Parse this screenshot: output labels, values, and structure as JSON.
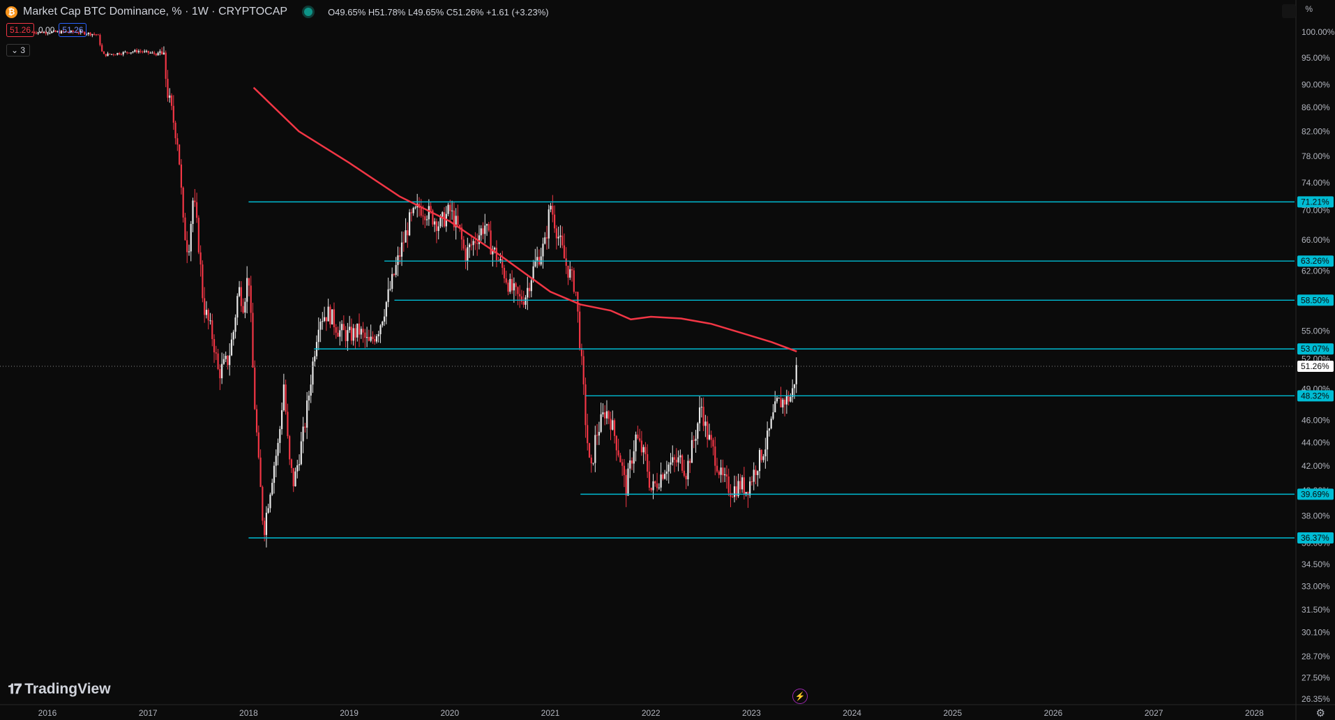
{
  "header": {
    "symbol_icon": "bitcoin-icon",
    "title": "Market Cap BTC Dominance, % · 1W · CRYPTOCAP",
    "ohlc": "O49.65% H51.78% L49.65% C51.26% +1.61 (+3.23%)",
    "price_left": "51.26",
    "price_mid": "0.00",
    "price_right": "51.26",
    "indicators_toggle": "⌄ 3"
  },
  "brand": {
    "logo_text": "TradingView"
  },
  "axis": {
    "unit": "%",
    "settings_icon": "gear-icon"
  },
  "colors": {
    "background": "#0b0b0b",
    "level_line": "#00bcd4",
    "ma_line": "#f23645",
    "candle_up": "#e8e8e8",
    "candle_down": "#f23645"
  },
  "chart_data": {
    "type": "candlestick",
    "title": "Market Cap BTC Dominance, % · 1W · CRYPTOCAP",
    "x_ticks": [
      "2016",
      "2017",
      "2018",
      "2019",
      "2020",
      "2021",
      "2022",
      "2023",
      "2024",
      "2025",
      "2026",
      "2027",
      "2028"
    ],
    "y_ticks": [
      "100.00%",
      "95.00%",
      "90.00%",
      "86.00%",
      "82.00%",
      "78.00%",
      "74.00%",
      "70.00%",
      "66.00%",
      "62.00%",
      "55.00%",
      "52.00%",
      "49.00%",
      "46.00%",
      "44.00%",
      "42.00%",
      "40.00%",
      "38.00%",
      "36.00%",
      "34.50%",
      "33.00%",
      "31.50%",
      "30.10%",
      "28.70%",
      "27.50%",
      "26.35%"
    ],
    "y_scale": "log",
    "ylim": [
      26.0,
      101.5
    ],
    "grid": false,
    "current_price": 51.26,
    "current_price_label": "51.26%",
    "horizontal_levels": [
      {
        "value": 71.21,
        "label": "71.21%",
        "start": 2018.0
      },
      {
        "value": 63.26,
        "label": "63.26%",
        "start": 2019.35
      },
      {
        "value": 58.5,
        "label": "58.50%",
        "start": 2019.45
      },
      {
        "value": 53.07,
        "label": "53.07%",
        "start": 2018.65
      },
      {
        "value": 48.32,
        "label": "48.32%",
        "start": 2021.35
      },
      {
        "value": 39.69,
        "label": "39.69%",
        "start": 2021.3
      },
      {
        "value": 36.37,
        "label": "36.37%",
        "start": 2018.0
      }
    ],
    "moving_average": [
      [
        2018.05,
        89.5
      ],
      [
        2018.5,
        82.0
      ],
      [
        2019.0,
        77.0
      ],
      [
        2019.5,
        72.0
      ],
      [
        2020.0,
        68.5
      ],
      [
        2020.5,
        64.0
      ],
      [
        2021.0,
        59.5
      ],
      [
        2021.3,
        58.0
      ],
      [
        2021.6,
        57.3
      ],
      [
        2021.8,
        56.3
      ],
      [
        2022.0,
        56.6
      ],
      [
        2022.3,
        56.4
      ],
      [
        2022.6,
        55.8
      ],
      [
        2022.9,
        54.8
      ],
      [
        2023.2,
        53.8
      ],
      [
        2023.45,
        52.8
      ]
    ],
    "price_path": [
      [
        2015.85,
        100.0
      ],
      [
        2016.3,
        100.0
      ],
      [
        2016.5,
        99.5
      ],
      [
        2016.55,
        95.5
      ],
      [
        2016.9,
        96.3
      ],
      [
        2017.15,
        95.5
      ],
      [
        2017.2,
        88.0
      ],
      [
        2017.3,
        80.0
      ],
      [
        2017.35,
        68.0
      ],
      [
        2017.4,
        64.5
      ],
      [
        2017.45,
        72.0
      ],
      [
        2017.5,
        66.0
      ],
      [
        2017.55,
        58.0
      ],
      [
        2017.65,
        54.0
      ],
      [
        2017.7,
        50.5
      ],
      [
        2017.8,
        52.0
      ],
      [
        2017.85,
        55.0
      ],
      [
        2017.9,
        60.0
      ],
      [
        2017.95,
        58.0
      ],
      [
        2018.0,
        62.0
      ],
      [
        2018.05,
        49.0
      ],
      [
        2018.1,
        42.0
      ],
      [
        2018.15,
        36.8
      ],
      [
        2018.25,
        42.0
      ],
      [
        2018.3,
        44.0
      ],
      [
        2018.35,
        49.5
      ],
      [
        2018.4,
        42.5
      ],
      [
        2018.45,
        40.5
      ],
      [
        2018.55,
        45.0
      ],
      [
        2018.6,
        48.5
      ],
      [
        2018.7,
        56.5
      ],
      [
        2018.8,
        57.0
      ],
      [
        2018.9,
        55.0
      ],
      [
        2019.0,
        54.5
      ],
      [
        2019.1,
        55.0
      ],
      [
        2019.2,
        53.5
      ],
      [
        2019.3,
        55.5
      ],
      [
        2019.4,
        59.5
      ],
      [
        2019.5,
        64.0
      ],
      [
        2019.6,
        68.5
      ],
      [
        2019.7,
        70.5
      ],
      [
        2019.8,
        69.5
      ],
      [
        2019.9,
        68.0
      ],
      [
        2020.0,
        70.0
      ],
      [
        2020.1,
        67.0
      ],
      [
        2020.15,
        64.0
      ],
      [
        2020.25,
        66.0
      ],
      [
        2020.35,
        68.0
      ],
      [
        2020.4,
        65.5
      ],
      [
        2020.5,
        63.0
      ],
      [
        2020.6,
        60.0
      ],
      [
        2020.7,
        58.5
      ],
      [
        2020.75,
        59.0
      ],
      [
        2020.85,
        63.0
      ],
      [
        2020.95,
        65.5
      ],
      [
        2021.0,
        71.0
      ],
      [
        2021.05,
        68.0
      ],
      [
        2021.15,
        63.0
      ],
      [
        2021.25,
        60.0
      ],
      [
        2021.3,
        53.0
      ],
      [
        2021.35,
        46.0
      ],
      [
        2021.4,
        41.0
      ],
      [
        2021.45,
        44.5
      ],
      [
        2021.55,
        47.0
      ],
      [
        2021.6,
        46.0
      ],
      [
        2021.7,
        42.5
      ],
      [
        2021.75,
        40.0
      ],
      [
        2021.85,
        44.5
      ],
      [
        2021.95,
        42.5
      ],
      [
        2022.0,
        40.0
      ],
      [
        2022.05,
        40.5
      ],
      [
        2022.15,
        42.0
      ],
      [
        2022.3,
        42.5
      ],
      [
        2022.35,
        41.5
      ],
      [
        2022.45,
        45.0
      ],
      [
        2022.5,
        47.5
      ],
      [
        2022.55,
        45.0
      ],
      [
        2022.65,
        42.5
      ],
      [
        2022.7,
        41.0
      ],
      [
        2022.8,
        40.0
      ],
      [
        2022.9,
        40.5
      ],
      [
        2022.95,
        40.0
      ],
      [
        2023.05,
        42.0
      ],
      [
        2023.15,
        44.0
      ],
      [
        2023.25,
        47.5
      ],
      [
        2023.35,
        48.0
      ],
      [
        2023.4,
        48.3
      ],
      [
        2023.45,
        51.26
      ]
    ]
  }
}
